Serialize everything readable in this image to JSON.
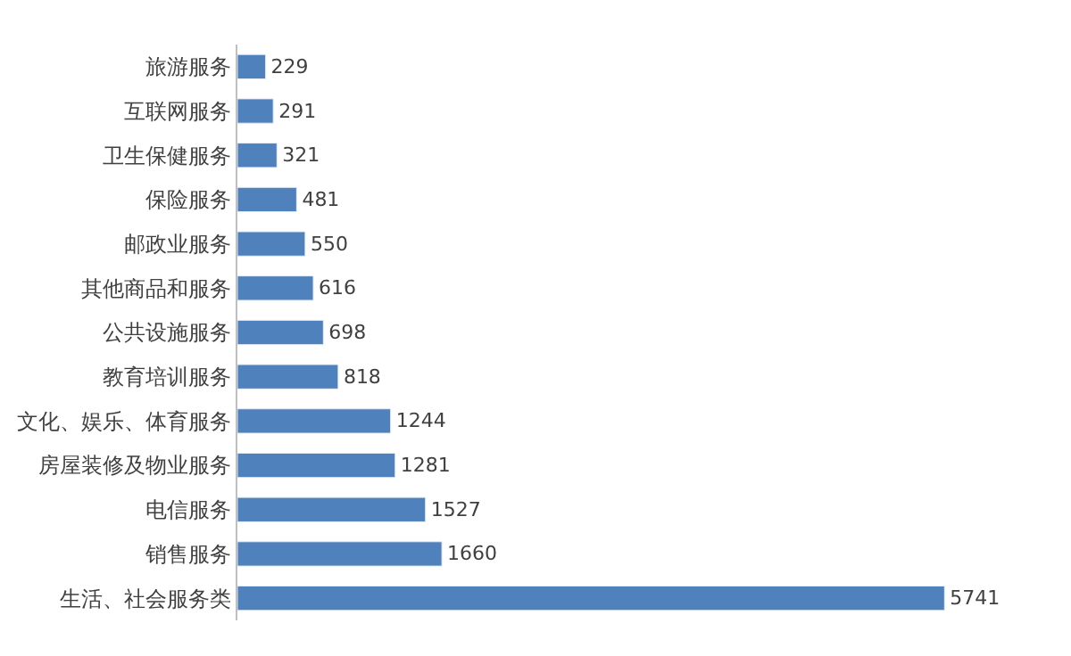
{
  "chart_data": {
    "type": "bar",
    "orientation": "horizontal",
    "categories": [
      "旅游服务",
      "互联网服务",
      "卫生保健服务",
      "保险服务",
      "邮政业服务",
      "其他商品和服务",
      "公共设施服务",
      "教育培训服务",
      "文化、娱乐、体育服务",
      "房屋装修及物业服务",
      "电信服务",
      "销售服务",
      "生活、社会服务类"
    ],
    "values": [
      229,
      291,
      321,
      481,
      550,
      616,
      698,
      818,
      1244,
      1281,
      1527,
      1660,
      5741
    ],
    "color": "#4f81bd",
    "data_labels": true
  }
}
